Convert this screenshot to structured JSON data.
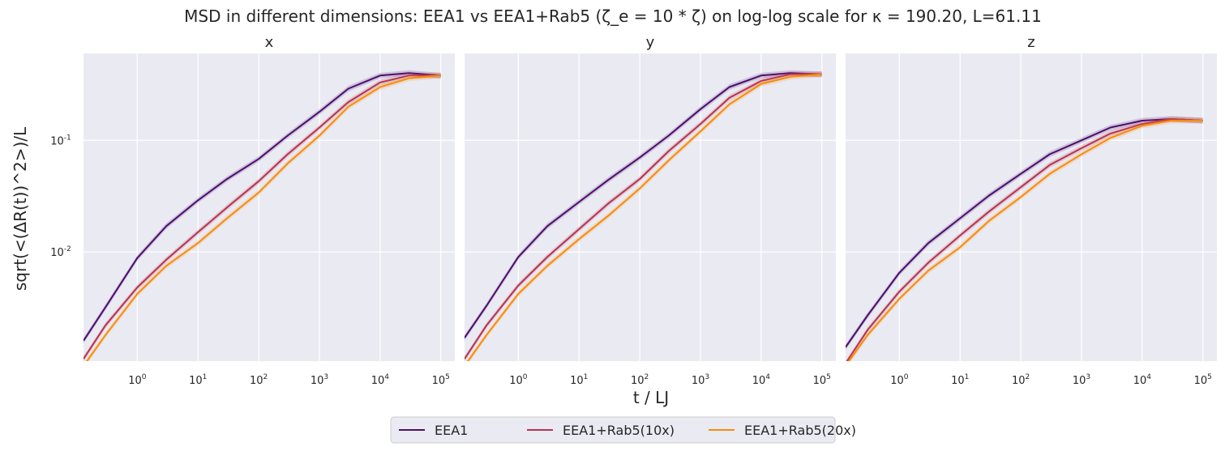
{
  "chart_data": {
    "type": "line",
    "title": "MSD in different dimensions: EEA1 vs EEA1+Rab5 (ζ_e = 10 * ζ) on log-log scale for κ = 190.20, L=61.11",
    "xlabel": "t / LJ",
    "ylabel": "sqrt(<(ΔR(t))^2>)/L",
    "xscale": "log",
    "yscale": "log",
    "xlim": [
      0.13,
      170000
    ],
    "ylim": [
      0.00105,
      0.6
    ],
    "grid": true,
    "legend_position": "bottom-center",
    "x_ticks": [
      1,
      10,
      100,
      1000,
      10000,
      100000
    ],
    "y_ticks": [
      0.01,
      0.1
    ],
    "panels": [
      {
        "title": "x",
        "series": [
          {
            "name": "EEA1",
            "color": "#4d0e6e",
            "x": [
              0.13,
              0.3,
              1,
              3,
              10,
              30,
              100,
              300,
              1000,
              3000,
              10000,
              30000,
              100000
            ],
            "y": [
              0.0016,
              0.0032,
              0.0088,
              0.017,
              0.029,
              0.045,
              0.068,
              0.11,
              0.18,
              0.29,
              0.38,
              0.4,
              0.38
            ]
          },
          {
            "name": "EEA1+Rab5(10x)",
            "color": "#b8334f",
            "x": [
              0.13,
              0.3,
              1,
              3,
              10,
              30,
              100,
              300,
              1000,
              3000,
              10000,
              30000,
              100000
            ],
            "y": [
              0.0011,
              0.0022,
              0.0048,
              0.0085,
              0.015,
              0.025,
              0.043,
              0.075,
              0.13,
              0.22,
              0.33,
              0.38,
              0.38
            ]
          },
          {
            "name": "EEA1+Rab5(20x)",
            "color": "#f98c0a",
            "x": [
              0.13,
              0.3,
              1,
              3,
              10,
              30,
              100,
              300,
              1000,
              3000,
              10000,
              30000,
              100000
            ],
            "y": [
              0.00095,
              0.0018,
              0.0042,
              0.0075,
              0.012,
              0.02,
              0.034,
              0.062,
              0.11,
              0.2,
              0.3,
              0.36,
              0.38
            ]
          }
        ]
      },
      {
        "title": "y",
        "series": [
          {
            "name": "EEA1",
            "color": "#4d0e6e",
            "x": [
              0.13,
              0.3,
              1,
              3,
              10,
              30,
              100,
              300,
              1000,
              3000,
              10000,
              30000,
              100000
            ],
            "y": [
              0.0017,
              0.0033,
              0.009,
              0.017,
              0.028,
              0.044,
              0.07,
              0.11,
              0.19,
              0.3,
              0.38,
              0.4,
              0.39
            ]
          },
          {
            "name": "EEA1+Rab5(10x)",
            "color": "#b8334f",
            "x": [
              0.13,
              0.3,
              1,
              3,
              10,
              30,
              100,
              300,
              1000,
              3000,
              10000,
              30000,
              100000
            ],
            "y": [
              0.0011,
              0.0022,
              0.005,
              0.009,
              0.016,
              0.027,
              0.045,
              0.08,
              0.14,
              0.24,
              0.34,
              0.39,
              0.39
            ]
          },
          {
            "name": "EEA1+Rab5(20x)",
            "color": "#f98c0a",
            "x": [
              0.13,
              0.3,
              1,
              3,
              10,
              30,
              100,
              300,
              1000,
              3000,
              10000,
              30000,
              100000
            ],
            "y": [
              0.00095,
              0.0018,
              0.0042,
              0.0075,
              0.013,
              0.021,
              0.037,
              0.066,
              0.12,
              0.21,
              0.32,
              0.37,
              0.39
            ]
          }
        ]
      },
      {
        "title": "z",
        "series": [
          {
            "name": "EEA1",
            "color": "#4d0e6e",
            "x": [
              0.13,
              0.3,
              1,
              3,
              10,
              30,
              100,
              300,
              1000,
              3000,
              10000,
              30000,
              100000
            ],
            "y": [
              0.0014,
              0.0027,
              0.0065,
              0.012,
              0.02,
              0.032,
              0.05,
              0.075,
              0.1,
              0.13,
              0.15,
              0.155,
              0.15
            ]
          },
          {
            "name": "EEA1+Rab5(10x)",
            "color": "#b8334f",
            "x": [
              0.13,
              0.3,
              1,
              3,
              10,
              30,
              100,
              300,
              1000,
              3000,
              10000,
              30000,
              100000
            ],
            "y": [
              0.001,
              0.002,
              0.0044,
              0.008,
              0.014,
              0.023,
              0.038,
              0.06,
              0.085,
              0.115,
              0.14,
              0.155,
              0.15
            ]
          },
          {
            "name": "EEA1+Rab5(20x)",
            "color": "#f98c0a",
            "x": [
              0.13,
              0.3,
              1,
              3,
              10,
              30,
              100,
              300,
              1000,
              3000,
              10000,
              30000,
              100000
            ],
            "y": [
              0.00095,
              0.0018,
              0.0038,
              0.0068,
              0.011,
              0.019,
              0.031,
              0.05,
              0.075,
              0.105,
              0.135,
              0.15,
              0.15
            ]
          }
        ]
      }
    ]
  }
}
